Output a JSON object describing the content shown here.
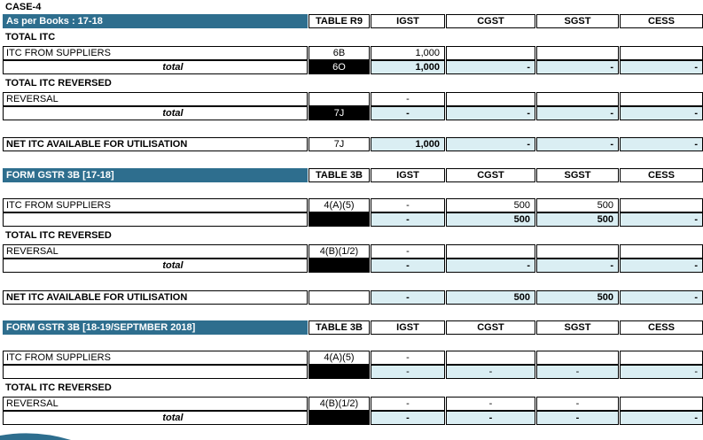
{
  "case_title": "CASE-4",
  "headers": {
    "table_r9": "TABLE  R9",
    "table_3b": "TABLE  3B",
    "igst": "IGST",
    "cgst": "CGST",
    "sgst": "SGST",
    "cess": "CESS"
  },
  "books": {
    "title": "As per Books : 17-18",
    "total_itc_label": "TOTAL ITC",
    "itc_row": {
      "label": "ITC FROM SUPPLIERS",
      "table": "6B",
      "igst": "1,000",
      "cgst": "",
      "sgst": "",
      "cess": ""
    },
    "itc_total": {
      "label": "total",
      "table": "6O",
      "igst": "1,000",
      "cgst": "-",
      "sgst": "-",
      "cess": "-"
    },
    "reversed_label": "TOTAL ITC REVERSED",
    "reversal_row": {
      "label": "REVERSAL",
      "table": "",
      "igst": "-",
      "cgst": "",
      "sgst": "",
      "cess": ""
    },
    "reversal_total": {
      "label": "total",
      "table": "7J",
      "igst": "-",
      "cgst": "-",
      "sgst": "-",
      "cess": "-"
    },
    "net_row": {
      "label": "NET ITC AVAILABLE FOR UTILISATION",
      "table": "7J",
      "igst": "1,000",
      "cgst": "-",
      "sgst": "-",
      "cess": "-"
    }
  },
  "gstr3b_1718": {
    "title": "FORM GSTR 3B [17-18]",
    "itc_row": {
      "label": "ITC FROM SUPPLIERS",
      "table": "4(A)(5)",
      "igst": "-",
      "cgst": "500",
      "sgst": "500",
      "cess": ""
    },
    "itc_total": {
      "label": "",
      "table": "",
      "igst": "-",
      "cgst": "500",
      "sgst": "500",
      "cess": "-"
    },
    "reversed_label": "TOTAL ITC REVERSED",
    "reversal_row": {
      "label": "REVERSAL",
      "table": "4(B)(1/2)",
      "igst": "-",
      "cgst": "",
      "sgst": "",
      "cess": ""
    },
    "reversal_total": {
      "label": "total",
      "table": "",
      "igst": "-",
      "cgst": "-",
      "sgst": "-",
      "cess": "-"
    },
    "net_row": {
      "label": "NET ITC AVAILABLE FOR UTILISATION",
      "table": "",
      "igst": "-",
      "cgst": "500",
      "sgst": "500",
      "cess": "-"
    }
  },
  "gstr3b_1819": {
    "title": "FORM GSTR 3B [18-19/SEPTMBER 2018]",
    "itc_row": {
      "label": "ITC FROM SUPPLIERS",
      "table": "4(A)(5)",
      "igst": "-",
      "cgst": "",
      "sgst": "",
      "cess": ""
    },
    "itc_total": {
      "label": "",
      "table": "",
      "igst": "-",
      "cgst": "-",
      "sgst": "-",
      "cess": "-"
    },
    "reversed_label": "TOTAL ITC REVERSED",
    "reversal_row": {
      "label": "REVERSAL",
      "table": "4(B)(1/2)",
      "igst": "-",
      "cgst": "-",
      "sgst": "-",
      "cess": ""
    },
    "reversal_total": {
      "label": "total",
      "table": "",
      "igst": "-",
      "cgst": "-",
      "sgst": "-",
      "cess": "-"
    }
  },
  "colors": {
    "header_bg": "#2e6e8e",
    "light_blue": "#daeef3",
    "black": "#000000"
  }
}
